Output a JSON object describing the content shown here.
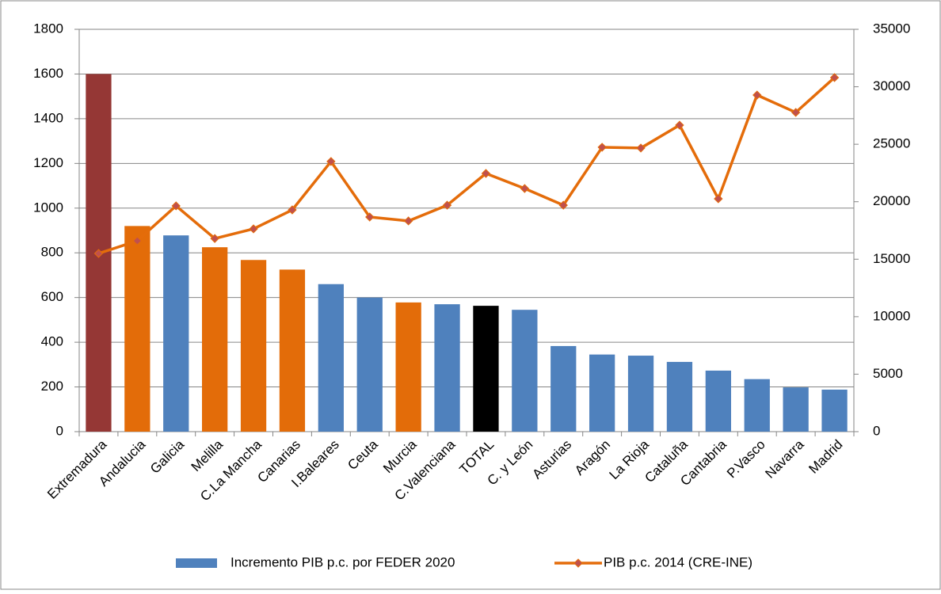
{
  "chart_data": {
    "type": "bar-line",
    "categories": [
      "Extremadura",
      "Andalucia",
      "Galicia",
      "Melilla",
      "C.La Mancha",
      "Canarias",
      "I.Baleares",
      "Ceuta",
      "Murcia",
      "C.Valenciana",
      "TOTAL",
      "C. y León",
      "Asturias",
      "Aragón",
      "La Rioja",
      "Cataluña",
      "Cantabria",
      "P.Vasco",
      "Navarra",
      "Madrid"
    ],
    "series": [
      {
        "name": "Incremento PIB p.c. por FEDER  2020",
        "type": "bar",
        "color": "#4f81bd",
        "colors": [
          "#953735",
          "#e36c09",
          "#4f81bd",
          "#e36c09",
          "#e36c09",
          "#e36c09",
          "#4f81bd",
          "#4f81bd",
          "#e36c09",
          "#4f81bd",
          "#000000",
          "#4f81bd",
          "#4f81bd",
          "#4f81bd",
          "#4f81bd",
          "#4f81bd",
          "#4f81bd",
          "#4f81bd",
          "#4f81bd",
          "#4f81bd"
        ],
        "values": [
          1600,
          920,
          878,
          825,
          768,
          725,
          660,
          600,
          578,
          570,
          563,
          545,
          383,
          345,
          340,
          312,
          273,
          235,
          198,
          188
        ]
      },
      {
        "name": "PIB p.c. 2014 (CRE-INE)",
        "type": "line",
        "axis": "y2",
        "color": "#e46c0a",
        "marker_color": "#c0504d",
        "values": [
          15500,
          16600,
          19640,
          16800,
          17640,
          19290,
          23500,
          18670,
          18330,
          19700,
          22460,
          21150,
          19700,
          24740,
          24670,
          26660,
          20260,
          29280,
          27770,
          30800
        ]
      }
    ],
    "ylim": [
      0,
      1800
    ],
    "yticks": [
      0,
      200,
      400,
      600,
      800,
      1000,
      1200,
      1400,
      1600,
      1800
    ],
    "y2lim": [
      0,
      35000
    ],
    "y2ticks": [
      0,
      5000,
      10000,
      15000,
      20000,
      25000,
      30000,
      35000
    ],
    "grid": true,
    "legend": "bottom"
  }
}
